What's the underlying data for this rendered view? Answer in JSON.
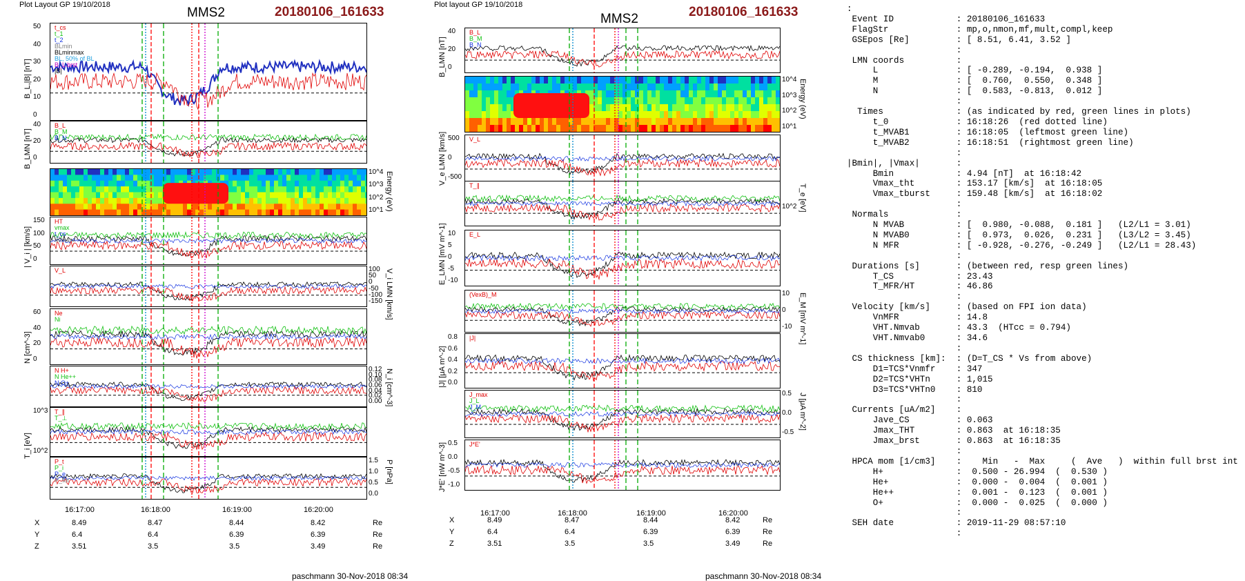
{
  "left": {
    "header_left": "Plot Layout GP 19/10/2018",
    "header_center": "MMS2",
    "header_right": "20180106_161633",
    "footer": "paschmann 30-Nov-2018 08:34",
    "panels": [
      {
        "ylabel": "B_L,|B| [nT]",
        "ticks": [
          "50",
          "40",
          "30",
          "20",
          "10",
          "0"
        ],
        "legend": [
          "t_cs",
          "t_1",
          "t_2",
          "BLmin",
          "BLminmax",
          "BL, 50% of BL",
          "B_L brst",
          "|B|"
        ]
      },
      {
        "ylabel": "B_LMN [nT]",
        "ticks": [
          "40",
          "20",
          "0"
        ],
        "legend": [
          "B_L",
          "B_M",
          "B_N"
        ]
      },
      {
        "ylabel_r": "Energy (eV)",
        "ticks_r": [
          "10^4",
          "10^3",
          "10^2",
          "10^1"
        ]
      },
      {
        "ylabel": "| V_i | [km/s]",
        "ticks": [
          "150",
          "100",
          "50",
          "0"
        ],
        "legend": [
          "HT",
          "vmax",
          "t_cs",
          "dvmax"
        ]
      },
      {
        "ylabel_r": "V_i LMN [km/s]",
        "ticks_r": [
          "100",
          "50",
          "0",
          "-50",
          "-100",
          "-150"
        ],
        "legend": [
          "V_L"
        ]
      },
      {
        "ylabel": "N [cm^-3]",
        "ticks": [
          "60",
          "40",
          "20",
          "0"
        ],
        "legend": [
          "Ne",
          "Ni"
        ]
      },
      {
        "ylabel_r": "N_i [cm^-3]",
        "ticks_r": [
          "0.12",
          "0.10",
          "0.08",
          "0.06",
          "0.04",
          "0.02",
          "0.00"
        ],
        "legend": [
          "N H+",
          "N He++",
          "N O+"
        ]
      },
      {
        "ylabel": "T_i [eV]",
        "ticks": [
          "10^3",
          "10^2"
        ],
        "legend": [
          "T_∥",
          "T_⊥"
        ]
      },
      {
        "ylabel_r": "P [nPa]",
        "ticks_r": [
          "1.5",
          "1.0",
          "0.5",
          "0.0"
        ],
        "legend": [
          "P_t",
          "P_i",
          "P_e",
          "P_tot"
        ]
      }
    ],
    "xticks": [
      "16:17:00",
      "16:18:00",
      "16:19:00",
      "16:20:00"
    ],
    "ephem": [
      {
        "name": "X",
        "vals": [
          "8.49",
          "8.47",
          "8.44",
          "8.42"
        ],
        "unit": "Re"
      },
      {
        "name": "Y",
        "vals": [
          "6.4",
          "6.4",
          "6.39",
          "6.39"
        ],
        "unit": "Re"
      },
      {
        "name": "Z",
        "vals": [
          "3.51",
          "3.5",
          "3.5",
          "3.49"
        ],
        "unit": "Re"
      }
    ]
  },
  "middle": {
    "header_left": "Plot layout GP 19/10/2018",
    "header_center": "MMS2",
    "header_right": "20180106_161633",
    "footer": "paschmann 30-Nov-2018 08:34",
    "panels": [
      {
        "ylabel": "B_LMN [nT]",
        "ticks": [
          "40",
          "20",
          "0"
        ],
        "legend": [
          "B_L",
          "B_M",
          "B_N"
        ]
      },
      {
        "ylabel_r": "Energy (eV)",
        "ticks_r": [
          "10^4",
          "10^3",
          "10^2",
          "10^1"
        ]
      },
      {
        "ylabel": "V_e LMN [km/s]",
        "ticks": [
          "500",
          "0",
          "-500"
        ],
        "legend": [
          "V_L"
        ]
      },
      {
        "ylabel_r": "T_e [eV]",
        "ticks_r": [
          "10^2"
        ],
        "legend": [
          "T_∥"
        ]
      },
      {
        "ylabel": "E_LMN [mV m^-1]",
        "ticks": [
          "10",
          "5",
          "0",
          "-5",
          "-10"
        ],
        "legend": [
          "E_L"
        ]
      },
      {
        "ylabel_r": "E_M [mV m^-1]",
        "ticks_r": [
          "10",
          "0",
          "-10"
        ],
        "legend": [
          "(VexB)_M"
        ]
      },
      {
        "ylabel": "|J| [μA m^-2]",
        "ticks": [
          "0.8",
          "0.6",
          "0.4",
          "0.2",
          "0.0"
        ],
        "legend": [
          "|J|"
        ]
      },
      {
        "ylabel_r": "J [μA m^-2]",
        "ticks_r": [
          "0.5",
          "0.0",
          "-0.5"
        ],
        "legend": [
          "J_max",
          "J_L",
          "J_M"
        ]
      },
      {
        "ylabel": "J*E' [nW m^-3]",
        "ticks": [
          "0.5",
          "0.0",
          "-0.5",
          "-1.0"
        ],
        "legend": [
          "J*E'"
        ]
      }
    ],
    "xticks": [
      "16:17:00",
      "16:18:00",
      "16:19:00",
      "16:20:00"
    ],
    "ephem": [
      {
        "name": "X",
        "vals": [
          "8.49",
          "8.47",
          "8.44",
          "8.42"
        ],
        "unit": "Re"
      },
      {
        "name": "Y",
        "vals": [
          "6.4",
          "6.4",
          "6.39",
          "6.39"
        ],
        "unit": "Re"
      },
      {
        "name": "Z",
        "vals": [
          "3.51",
          "3.5",
          "3.5",
          "3.49"
        ],
        "unit": "Re"
      }
    ]
  },
  "info_lines": [
    ":",
    " Event ID            : 20180106_161633",
    " FlagStr             : mp,o,nmon,mf,mult,compl,keep",
    " GSEpos [Re]         : [ 8.51, 6.41, 3.52 ]",
    "                     :",
    " LMN coords          :",
    "     L               : [ -0.289, -0.194,  0.938 ]",
    "     M               : [  0.760,  0.550,  0.348 ]",
    "     N               : [  0.583, -0.813,  0.012 ]",
    "                     :",
    "  Times              : (as indicated by red, green lines in plots)",
    "     t_0             : 16:18:26  (red dotted line)",
    "     t_MVAB1         : 16:18:05  (leftmost green line)",
    "     t_MVAB2         : 16:18:51  (rightmost green line)",
    "                     :",
    "|Bmin|, |Vmax|       :",
    "     Bmin            : 4.94 [nT]  at 16:18:42",
    "     Vmax_tht        : 153.17 [km/s]  at 16:18:05",
    "     Vmax_tburst     : 159.48 [km/s]  at 16:18:02",
    "                     :",
    " Normals             :",
    "     N MVAB          : [  0.980, -0.088,  0.181 ]   (L2/L1 = 3.01)",
    "     N MVAB0         : [  0.973,  0.026,  0.231 ]   (L3/L2 = 3.45)",
    "     N MFR           : [ -0.928, -0.276, -0.249 ]   (L2/L1 = 28.43)",
    "                     :",
    " Durations [s]       : (between red, resp green lines)",
    "     T_CS            : 23.43",
    "     T_MFR/HT        : 46.86",
    "                     :",
    " Velocity [km/s]     : (based on FPI ion data)",
    "     VnMFR           : 14.8",
    "     VHT.Nmvab       : 43.3  (HTcc = 0.794)",
    "     VHT.Nmvab0      : 34.6",
    "                     :",
    " CS thickness [km]:  : (D=T_CS * Vs from above)",
    "     D1=TCS*Vnmfr    : 347",
    "     D2=TCS*VHTn     : 1,015",
    "     D3=TCS*VHTn0    : 810",
    "                     :",
    " Currents [uA/m2]    :",
    "     Jave_CS         : 0.063",
    "     Jmax_THT        : 0.863  at 16:18:35",
    "     Jmax_brst       : 0.863  at 16:18:35",
    "                     :",
    " HPCA mom [1/cm3]    :    Min   -  Max     (  Ave   )  within full brst int",
    "     H+              :  0.500 - 26.994  (  0.530 )",
    "     He+             :  0.000 -  0.004  (  0.001 )",
    "     He++            :  0.001 -  0.123  (  0.001 )",
    "     O+              :  0.000 -  0.025  (  0.000 )",
    "                     :",
    " SEH date            : 2019-11-29 08:57:10",
    "                     :"
  ],
  "chart_data": [
    {
      "type": "line",
      "title": "MMS2",
      "xlabel": "",
      "x_ticks": [
        "16:17:00",
        "16:18:00",
        "16:19:00",
        "16:20:00"
      ],
      "series": [
        {
          "name": "|B|",
          "x": [
            0,
            0.1,
            0.2,
            0.3,
            0.4,
            0.45,
            0.5,
            0.55,
            0.6,
            0.65,
            0.7,
            0.8,
            0.9,
            1.0
          ],
          "values": [
            48,
            49,
            50,
            50,
            51,
            48,
            30,
            10,
            25,
            45,
            47,
            47,
            46,
            46
          ]
        },
        {
          "name": "N H+ (HPCA)",
          "x": [
            0.35,
            0.4,
            0.45,
            0.5,
            0.55,
            0.6,
            0.65
          ],
          "values": [
            0,
            0.01,
            0.1,
            0.08,
            0.08,
            0.01,
            0
          ]
        },
        {
          "name": "N O+",
          "x": [
            0.35,
            0.4,
            0.45,
            0.5,
            0.55,
            0.6,
            0.65
          ],
          "values": [
            0,
            0.005,
            0.02,
            0.015,
            0.01,
            0.005,
            0
          ]
        }
      ]
    },
    {
      "type": "line",
      "title": "MMS2",
      "x_ticks": [
        "16:17:00",
        "16:18:00",
        "16:19:00",
        "16:20:00"
      ],
      "series": [
        {
          "name": "|J|",
          "x": [
            0,
            0.3,
            0.4,
            0.45,
            0.5,
            0.55,
            0.6,
            0.7,
            0.8,
            1.0
          ],
          "values": [
            0,
            0,
            0.05,
            0.3,
            0.4,
            0.35,
            0.2,
            0.05,
            0.25,
            0
          ]
        }
      ]
    }
  ]
}
